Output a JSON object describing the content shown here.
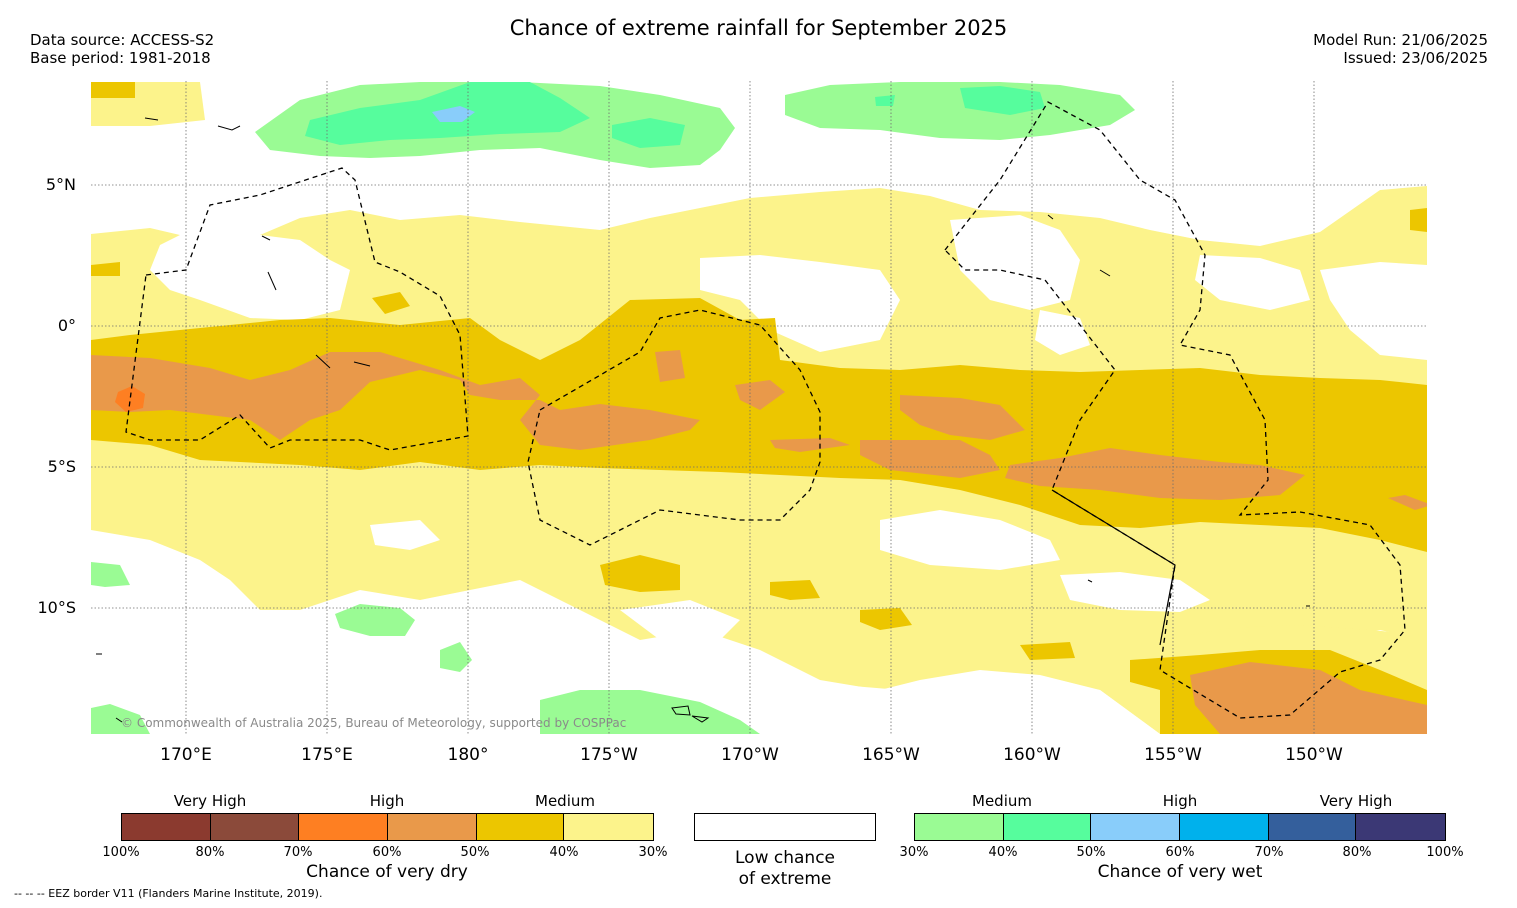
{
  "title": "Chance of extreme rainfall for September 2025",
  "header": {
    "data_source": "Data source: ACCESS-S2",
    "base_period": "Base period: 1981-2018",
    "model_run": "Model Run: 21/06/2025",
    "issued": "Issued: 23/06/2025"
  },
  "map": {
    "lat_labels": [
      "5°N",
      "0°",
      "5°S",
      "10°S"
    ],
    "lon_labels": [
      "170°E",
      "175°E",
      "180°",
      "175°W",
      "170°W",
      "165°W",
      "160°W",
      "155°W",
      "150°W"
    ],
    "copyright": "© Commonwealth of Australia 2025, Bureau of Meteorology, supported by COSPPac"
  },
  "legend": {
    "dry": {
      "levels": [
        "Very High",
        "High",
        "Medium"
      ],
      "ticks": [
        "100%",
        "80%",
        "70%",
        "60%",
        "50%",
        "40%",
        "30%"
      ],
      "colors": [
        "#8b3a2f",
        "#8b4a3a",
        "#fe7f22",
        "#e9994a",
        "#ecc600",
        "#fcf38b"
      ],
      "caption": "Chance of very dry"
    },
    "low": {
      "caption_line1": "Low chance",
      "caption_line2": "of extreme",
      "color": "#ffffff"
    },
    "wet": {
      "levels": [
        "Medium",
        "High",
        "Very High"
      ],
      "ticks": [
        "30%",
        "40%",
        "50%",
        "60%",
        "70%",
        "80%",
        "100%"
      ],
      "colors": [
        "#9afb94",
        "#56fd9d",
        "#89cdfa",
        "#00b1ec",
        "#345f9c",
        "#3b3875"
      ],
      "caption": "Chance of very wet"
    }
  },
  "footnote": "-- -- -- EEZ border V11 (Flanders Marine Institute, 2019)."
}
